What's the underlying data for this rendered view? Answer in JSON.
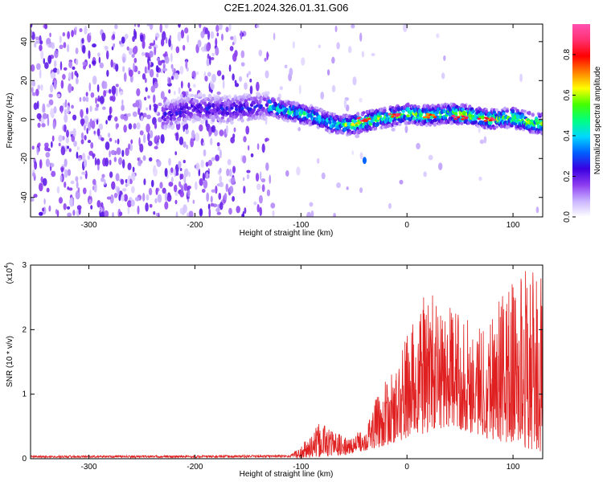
{
  "title": "C2E1.2024.326.01.31.G06",
  "chart_data": [
    {
      "type": "heatmap",
      "xlabel": "Height of straight line (km)",
      "ylabel": "Frequency (Hz)",
      "xlim": [
        -355,
        128
      ],
      "ylim": [
        -50,
        49
      ],
      "x_ticks": [
        -300,
        -200,
        -100,
        0,
        100
      ],
      "x_tick_labels": [
        "-300",
        "-200",
        "-100",
        "0",
        "100"
      ],
      "y_ticks": [
        -40,
        -20,
        0,
        20,
        40
      ],
      "y_tick_labels": [
        "-40",
        "-20",
        "0",
        "20",
        "40"
      ],
      "grid": false,
      "colorbar": {
        "label": "Normalized spectral amplitude",
        "range": [
          0,
          0.95
        ],
        "ticks": [
          0.0,
          0.2,
          0.4,
          0.6,
          0.8
        ],
        "tick_labels": [
          "0.0",
          "0.2",
          "0.4",
          "0.6",
          "0.8"
        ],
        "colors": [
          "#ffffff",
          "#c9b3ff",
          "#8c3cf0",
          "#3a00e0",
          "#0060ff",
          "#00d8ff",
          "#00ff80",
          "#44ff00",
          "#ffff00",
          "#ff8000",
          "#ff0000",
          "#ff3070",
          "#ff50b0"
        ]
      },
      "ridge": {
        "description_points": [
          {
            "x": -230,
            "y": 2
          },
          {
            "x": -200,
            "y": 6
          },
          {
            "x": -170,
            "y": 5
          },
          {
            "x": -130,
            "y": 7
          },
          {
            "x": -110,
            "y": 4
          },
          {
            "x": -90,
            "y": 2
          },
          {
            "x": -70,
            "y": -2
          },
          {
            "x": -55,
            "y": -3
          },
          {
            "x": -40,
            "y": -1
          },
          {
            "x": -20,
            "y": 1
          },
          {
            "x": 0,
            "y": 3
          },
          {
            "x": 20,
            "y": 2
          },
          {
            "x": 40,
            "y": 3
          },
          {
            "x": 60,
            "y": 2
          },
          {
            "x": 80,
            "y": 0
          },
          {
            "x": 100,
            "y": 1
          },
          {
            "x": 120,
            "y": -2
          }
        ],
        "max_amplitude_points": [
          {
            "x": -40,
            "y": 0,
            "v": 0.9
          },
          {
            "x": -10,
            "y": 2,
            "v": 0.9
          },
          {
            "x": 20,
            "y": 2,
            "v": 0.85
          },
          {
            "x": 50,
            "y": 1,
            "v": 0.9
          },
          {
            "x": 75,
            "y": 0,
            "v": 0.9
          }
        ]
      },
      "isolated_blob": {
        "x": -40,
        "y": -21
      }
    },
    {
      "type": "line",
      "xlabel": "Height of straight line (km)",
      "ylabel": "SNR (10 * v/v)",
      "y_multiplier_label": "(x10",
      "y_multiplier_exponent": "4",
      "y_multiplier_close": ")",
      "xlim": [
        -355,
        128
      ],
      "ylim": [
        0,
        3
      ],
      "x_ticks": [
        -300,
        -200,
        -100,
        0,
        100
      ],
      "x_tick_labels": [
        "-300",
        "-200",
        "-100",
        "0",
        "100"
      ],
      "y_ticks": [
        0,
        1,
        2,
        3
      ],
      "y_tick_labels": [
        "0",
        "1",
        "2",
        "3"
      ],
      "grid": false,
      "series": [
        {
          "color": "#e02020",
          "envelope": [
            {
              "x": -355,
              "y": 0.05
            },
            {
              "x": -200,
              "y": 0.05
            },
            {
              "x": -110,
              "y": 0.06
            },
            {
              "x": -100,
              "y": 0.2
            },
            {
              "x": -80,
              "y": 0.6
            },
            {
              "x": -70,
              "y": 0.45
            },
            {
              "x": -55,
              "y": 0.3
            },
            {
              "x": -40,
              "y": 0.5
            },
            {
              "x": -25,
              "y": 1.1
            },
            {
              "x": -10,
              "y": 1.4
            },
            {
              "x": 0,
              "y": 2.0
            },
            {
              "x": 10,
              "y": 2.3
            },
            {
              "x": 20,
              "y": 2.7
            },
            {
              "x": 30,
              "y": 2.4
            },
            {
              "x": 50,
              "y": 2.3
            },
            {
              "x": 70,
              "y": 2.1
            },
            {
              "x": 80,
              "y": 2.4
            },
            {
              "x": 90,
              "y": 2.6
            },
            {
              "x": 100,
              "y": 2.8
            },
            {
              "x": 110,
              "y": 3.0
            },
            {
              "x": 128,
              "y": 2.8
            }
          ],
          "baseline": [
            {
              "x": -355,
              "y": 0.0
            },
            {
              "x": -100,
              "y": 0.0
            },
            {
              "x": -60,
              "y": 0.05
            },
            {
              "x": -20,
              "y": 0.2
            },
            {
              "x": 0,
              "y": 0.3
            },
            {
              "x": 40,
              "y": 0.5
            },
            {
              "x": 80,
              "y": 0.3
            },
            {
              "x": 128,
              "y": 0.1
            }
          ]
        }
      ]
    }
  ]
}
